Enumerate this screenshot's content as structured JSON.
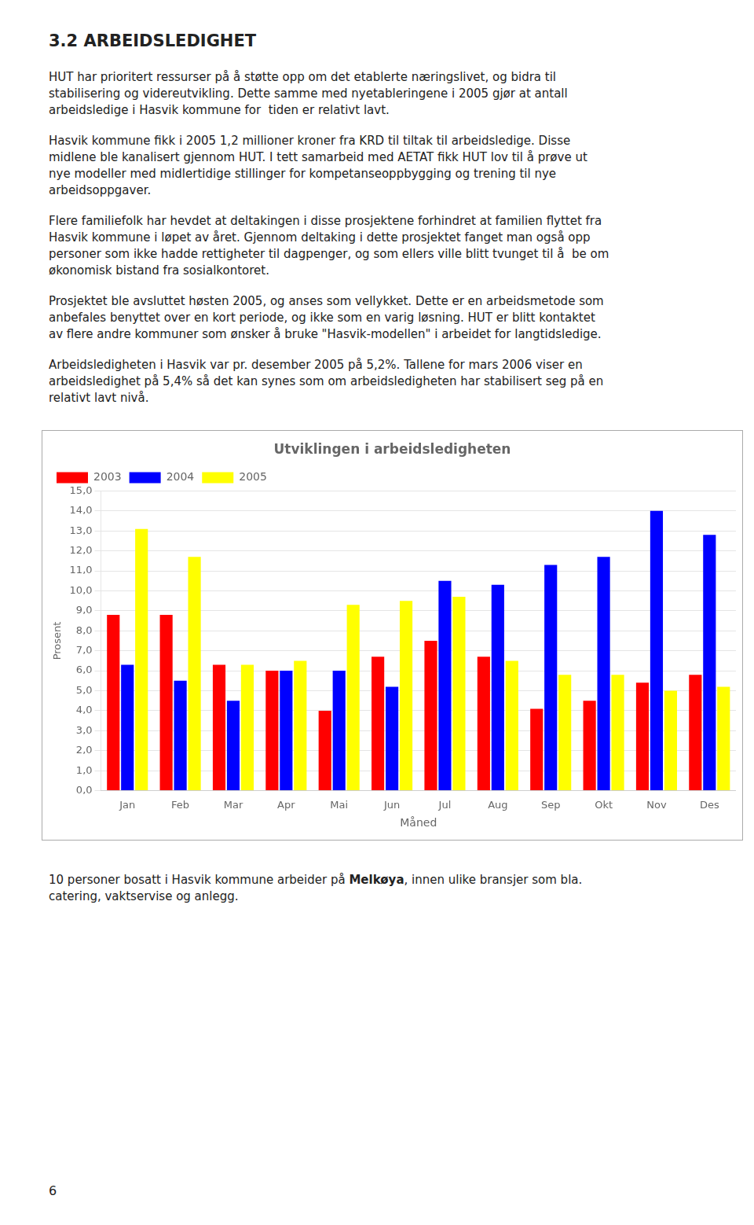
{
  "page_title": "3.2   ARBEIDSLEDIGHET",
  "paragraphs": [
    [
      "HUT har prioritert ressurser på å støtte opp om det etablerte næringslivet, og bidra til",
      "stabilisering og videreutvikling. Dette samme med nyetableringene i 2005 gjør at antall",
      "arbeidsledige i Hasvik kommune for  tiden er relativt lavt."
    ],
    [
      "Hasvik kommune fikk i 2005 1,2 millioner kroner fra KRD til tiltak til arbeidsledige. Disse",
      "midlene ble kanalisert gjennom HUT. I tett samarbeid med AETAT fikk HUT lov til å prøve ut",
      "nye modeller med midlertidige stillinger for kompetanseoppbygging og trening til nye",
      "arbeidsoppgaver."
    ],
    [
      "Flere familiefolk har hevdet at deltakingen i disse prosjektene forhindret at familien flyttet fra",
      "Hasvik kommune i løpet av året. Gjennom deltaking i dette prosjektet fanget man også opp",
      "personer som ikke hadde rettigheter til dagpenger, og som ellers ville blitt tvunget til å  be om",
      "økonomisk bistand fra sosialkontoret."
    ],
    [
      "Prosjektet ble avsluttet høsten 2005, og anses som vellykket. Dette er en arbeidsmetode som",
      "anbefales benyttet over en kort periode, og ikke som en varig løsning. HUT er blitt kontaktet",
      "av flere andre kommuner som ønsker å bruke \"Hasvik-modellen\" i arbeidet for langtidsledige."
    ],
    [
      "Arbeidsledigheten i Hasvik var pr. desember 2005 på 5,2%. Tallene for mars 2006 viser en",
      "arbeidsledighet på 5,4% så det kan synes som om arbeidsledigheten har stabilisert seg på en",
      "relativt lavt nivå."
    ]
  ],
  "chart_data": {
    "type": "bar",
    "title": "Utviklingen i arbeidsledigheten",
    "x_label": "Måned",
    "y_label": "Prosent",
    "categories": [
      "Jan",
      "Feb",
      "Mar",
      "Apr",
      "Mai",
      "Jun",
      "Jul",
      "Aug",
      "Sep",
      "Okt",
      "Nov",
      "Des"
    ],
    "series": [
      {
        "name": "2003",
        "color": "#FF0000",
        "values": [
          8.8,
          8.8,
          6.3,
          6.0,
          4.0,
          6.7,
          7.5,
          6.7,
          4.1,
          4.5,
          5.4,
          5.8
        ]
      },
      {
        "name": "2004",
        "color": "#0000FF",
        "values": [
          6.3,
          5.5,
          4.5,
          6.0,
          6.0,
          5.2,
          10.5,
          10.3,
          11.3,
          11.7,
          14.0,
          12.8
        ]
      },
      {
        "name": "2005",
        "color": "#FFFF00",
        "values": [
          13.1,
          11.7,
          6.3,
          6.5,
          9.3,
          9.5,
          9.7,
          6.5,
          5.8,
          5.8,
          5.0,
          5.2
        ]
      }
    ],
    "ylim": [
      0,
      15.0
    ],
    "yticks": [
      {
        "value": 0.0,
        "label": "0,0"
      },
      {
        "value": 1.0,
        "label": "1,0"
      },
      {
        "value": 2.0,
        "label": "2,0"
      },
      {
        "value": 3.0,
        "label": "3,0"
      },
      {
        "value": 4.0,
        "label": "4,0"
      },
      {
        "value": 5.0,
        "label": "5,0"
      },
      {
        "value": 6.0,
        "label": "6,0"
      },
      {
        "value": 7.0,
        "label": "7,0"
      },
      {
        "value": 8.0,
        "label": "8,0"
      },
      {
        "value": 9.0,
        "label": "9,0"
      },
      {
        "value": 10.0,
        "label": "10,0"
      },
      {
        "value": 11.0,
        "label": "11,0"
      },
      {
        "value": 12.0,
        "label": "12,0"
      },
      {
        "value": 13.0,
        "label": "13,0"
      },
      {
        "value": 14.0,
        "label": "14,0"
      },
      {
        "value": 15.0,
        "label": "15,0"
      }
    ],
    "grid": true,
    "legend": "upper left"
  },
  "footer": [
    [
      "10 personer bosatt i Hasvik kommune arbeider på ",
      "Melkøya",
      ", innen ulike bransjer som bla."
    ],
    [
      "catering, vaktservise og anlegg."
    ]
  ],
  "page_number": "6"
}
